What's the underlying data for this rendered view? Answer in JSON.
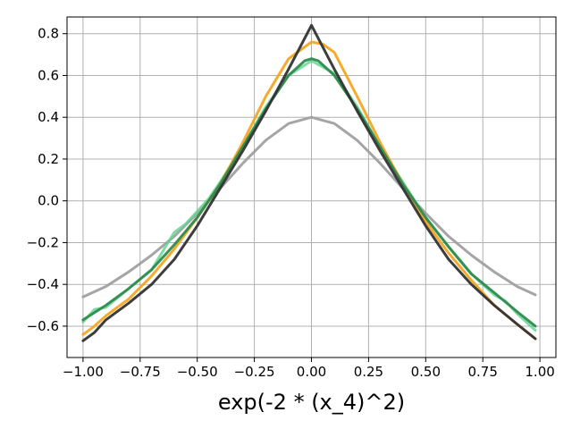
{
  "chart_data": {
    "type": "line",
    "title": "",
    "xlabel": "exp(-2 * (x_4)^2)",
    "ylabel": "",
    "xlim": [
      -1.07,
      1.07
    ],
    "ylim": [
      -0.75,
      0.88
    ],
    "grid": true,
    "x_ticks": [
      "-1.00",
      "-0.75",
      "-0.50",
      "-0.25",
      "0.00",
      "0.25",
      "0.50",
      "0.75",
      "1.00"
    ],
    "y_ticks": [
      "-0.6",
      "-0.4",
      "-0.2",
      "0.0",
      "0.2",
      "0.4",
      "0.6",
      "0.8"
    ],
    "series": [
      {
        "color": "#a0a0a0",
        "x": [
          -1.0,
          -0.9,
          -0.8,
          -0.7,
          -0.6,
          -0.5,
          -0.4,
          -0.3,
          -0.2,
          -0.1,
          0.0,
          0.1,
          0.2,
          0.3,
          0.4,
          0.5,
          0.6,
          0.7,
          0.8,
          0.9,
          0.98
        ],
        "y": [
          -0.46,
          -0.41,
          -0.34,
          -0.26,
          -0.17,
          -0.06,
          0.06,
          0.18,
          0.29,
          0.37,
          0.4,
          0.37,
          0.29,
          0.18,
          0.06,
          -0.06,
          -0.17,
          -0.26,
          -0.34,
          -0.41,
          -0.45
        ]
      },
      {
        "color": "#5ed38f",
        "x": [
          -1.0,
          -0.95,
          -0.9,
          -0.8,
          -0.7,
          -0.6,
          -0.55,
          -0.5,
          -0.45,
          -0.4,
          -0.3,
          -0.2,
          -0.1,
          0.0,
          0.1,
          0.2,
          0.3,
          0.4,
          0.5,
          0.6,
          0.7,
          0.8,
          0.85,
          0.9,
          0.98
        ],
        "y": [
          -0.58,
          -0.52,
          -0.51,
          -0.42,
          -0.33,
          -0.15,
          -0.11,
          -0.05,
          0.01,
          0.09,
          0.26,
          0.45,
          0.6,
          0.67,
          0.61,
          0.45,
          0.26,
          0.09,
          -0.08,
          -0.22,
          -0.35,
          -0.45,
          -0.48,
          -0.54,
          -0.62
        ]
      },
      {
        "color": "#f5a623",
        "x": [
          -1.0,
          -0.95,
          -0.9,
          -0.85,
          -0.8,
          -0.7,
          -0.6,
          -0.5,
          -0.4,
          -0.3,
          -0.2,
          -0.1,
          0.0,
          0.05,
          0.1,
          0.2,
          0.3,
          0.4,
          0.5,
          0.6,
          0.7,
          0.8,
          0.9,
          0.98
        ],
        "y": [
          -0.64,
          -0.6,
          -0.55,
          -0.51,
          -0.47,
          -0.36,
          -0.23,
          -0.08,
          0.08,
          0.28,
          0.5,
          0.68,
          0.76,
          0.75,
          0.71,
          0.5,
          0.28,
          0.08,
          -0.1,
          -0.25,
          -0.38,
          -0.5,
          -0.59,
          -0.66
        ]
      },
      {
        "color": "#2e8b4e",
        "x": [
          -1.0,
          -0.9,
          -0.8,
          -0.7,
          -0.6,
          -0.5,
          -0.4,
          -0.3,
          -0.2,
          -0.1,
          -0.03,
          0.0,
          0.03,
          0.1,
          0.2,
          0.3,
          0.4,
          0.5,
          0.6,
          0.7,
          0.8,
          0.9,
          0.98
        ],
        "y": [
          -0.57,
          -0.5,
          -0.42,
          -0.33,
          -0.21,
          -0.08,
          0.08,
          0.26,
          0.44,
          0.6,
          0.67,
          0.68,
          0.67,
          0.6,
          0.44,
          0.26,
          0.08,
          -0.08,
          -0.22,
          -0.35,
          -0.44,
          -0.53,
          -0.6
        ]
      },
      {
        "color": "#333333",
        "x": [
          -1.0,
          -0.95,
          -0.9,
          -0.8,
          -0.7,
          -0.6,
          -0.5,
          -0.4,
          -0.3,
          -0.2,
          -0.1,
          0.0,
          0.1,
          0.2,
          0.3,
          0.4,
          0.5,
          0.6,
          0.7,
          0.8,
          0.9,
          0.98
        ],
        "y": [
          -0.67,
          -0.63,
          -0.57,
          -0.49,
          -0.4,
          -0.28,
          -0.12,
          0.06,
          0.24,
          0.43,
          0.63,
          0.84,
          0.63,
          0.43,
          0.24,
          0.06,
          -0.12,
          -0.28,
          -0.4,
          -0.5,
          -0.59,
          -0.66
        ]
      }
    ]
  }
}
